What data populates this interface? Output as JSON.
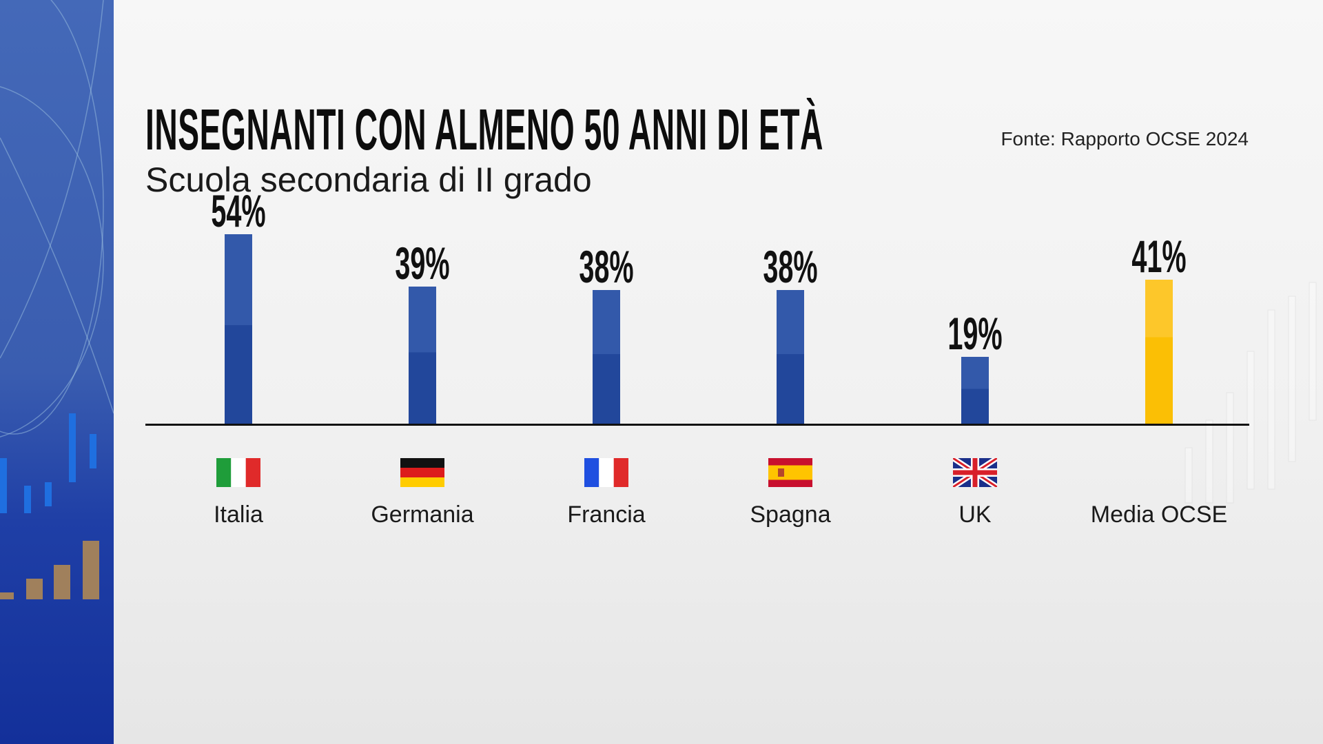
{
  "title": "INSEGNANTI CON ALMENO 50 ANNI DI ETÀ",
  "subtitle": "Scuola secondaria di II grado",
  "source": "Fonte: Rapporto OCSE 2024",
  "chart_data": {
    "type": "bar",
    "title": "INSEGNANTI CON ALMENO 50 ANNI DI ETÀ",
    "subtitle": "Scuola secondaria di II grado",
    "categories": [
      "Italia",
      "Germania",
      "Francia",
      "Spagna",
      "UK",
      "Media OCSE"
    ],
    "values": [
      54,
      39,
      38,
      38,
      19,
      41
    ],
    "data_labels": [
      "54%",
      "39%",
      "38%",
      "38%",
      "19%",
      "41%"
    ],
    "flags": [
      "italy-flag",
      "germany-flag",
      "france-flag",
      "spain-flag",
      "uk-flag",
      null
    ],
    "unit": "%",
    "grid": false,
    "colors": {
      "country": "#2f55a8",
      "average": "#fdc10c"
    }
  }
}
